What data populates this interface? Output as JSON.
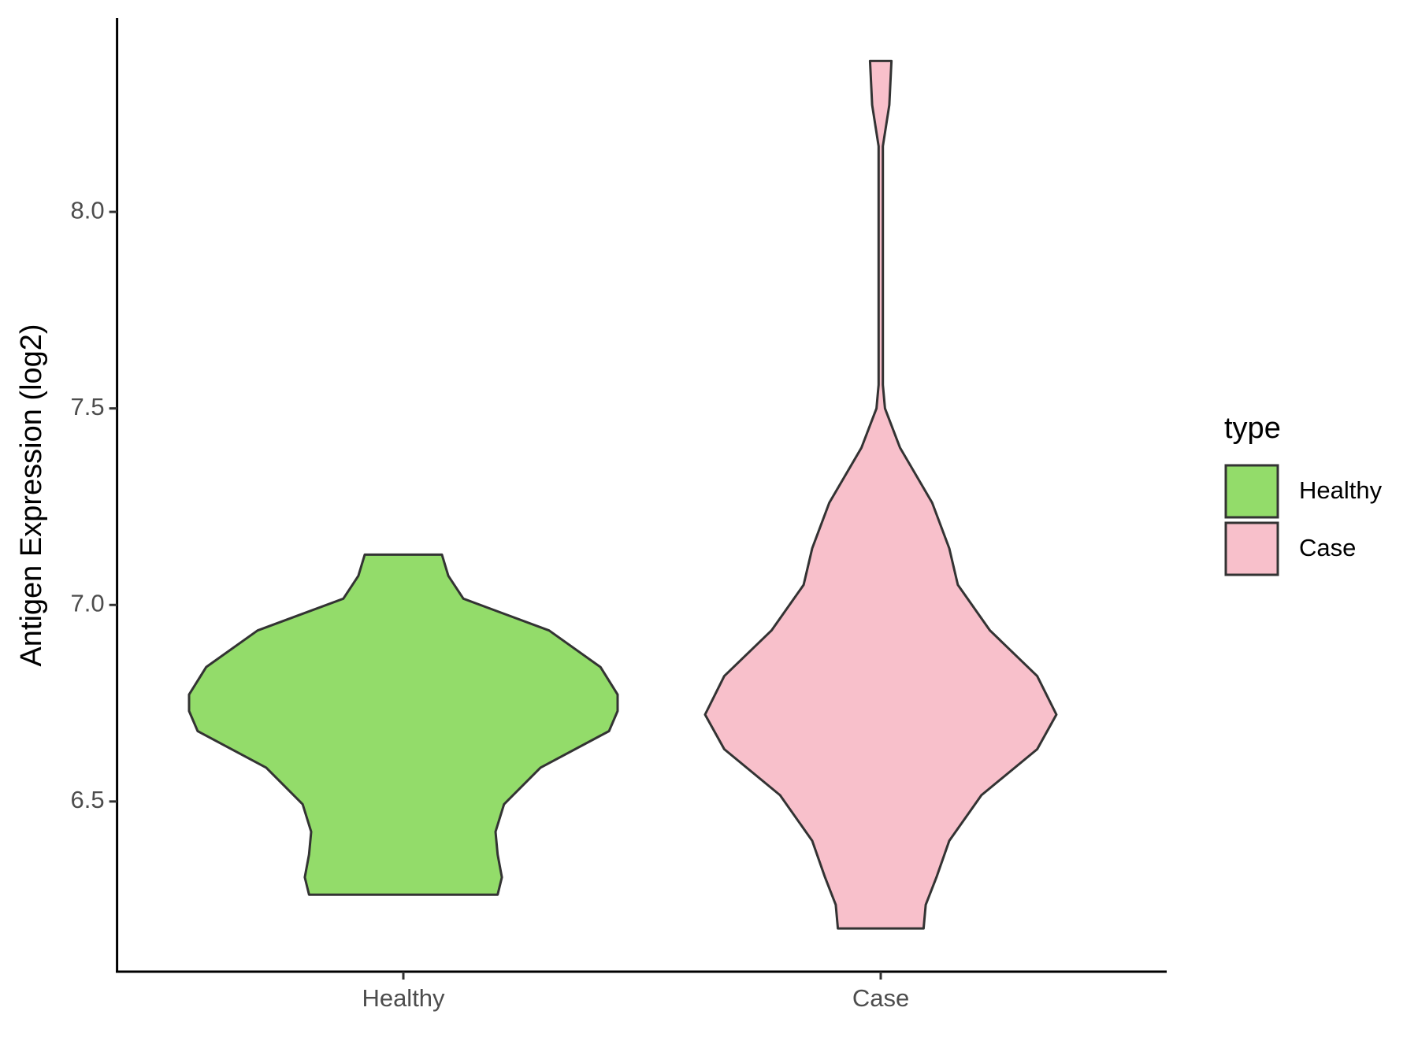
{
  "chart_data": {
    "type": "violin",
    "y_label": "Antigen Expression (log2)",
    "ylim": [
      6.067,
      8.493
    ],
    "yticks": [
      {
        "value": 6.5,
        "label": "6.5"
      },
      {
        "value": 7.0,
        "label": "7.0"
      },
      {
        "value": 7.5,
        "label": "7.5"
      },
      {
        "value": 8.0,
        "label": "8.0"
      }
    ],
    "legend_title": "type",
    "legend_position": "right",
    "categories": [
      "Healthy",
      "Case"
    ],
    "series": [
      {
        "name": "Healthy",
        "color": "#93dc6a",
        "y": [
          7.128,
          7.074,
          7.016,
          6.935,
          6.842,
          6.772,
          6.73,
          6.679,
          6.586,
          6.493,
          6.423,
          6.365,
          6.307,
          6.263
        ],
        "density": [
          0.18,
          0.21,
          0.28,
          0.68,
          0.92,
          1.0,
          1.0,
          0.96,
          0.64,
          0.47,
          0.43,
          0.44,
          0.46,
          0.44
        ]
      },
      {
        "name": "Case",
        "color": "#f8c0cb",
        "y": [
          8.384,
          8.272,
          8.167,
          8.07,
          7.56,
          7.5,
          7.4,
          7.26,
          7.144,
          7.051,
          6.935,
          6.819,
          6.721,
          6.633,
          6.516,
          6.4,
          6.307,
          6.237,
          6.177
        ],
        "density": [
          0.05,
          0.04,
          0.01,
          0.01,
          0.01,
          0.02,
          0.09,
          0.24,
          0.32,
          0.36,
          0.51,
          0.73,
          0.82,
          0.73,
          0.47,
          0.32,
          0.26,
          0.21,
          0.2
        ]
      }
    ]
  }
}
